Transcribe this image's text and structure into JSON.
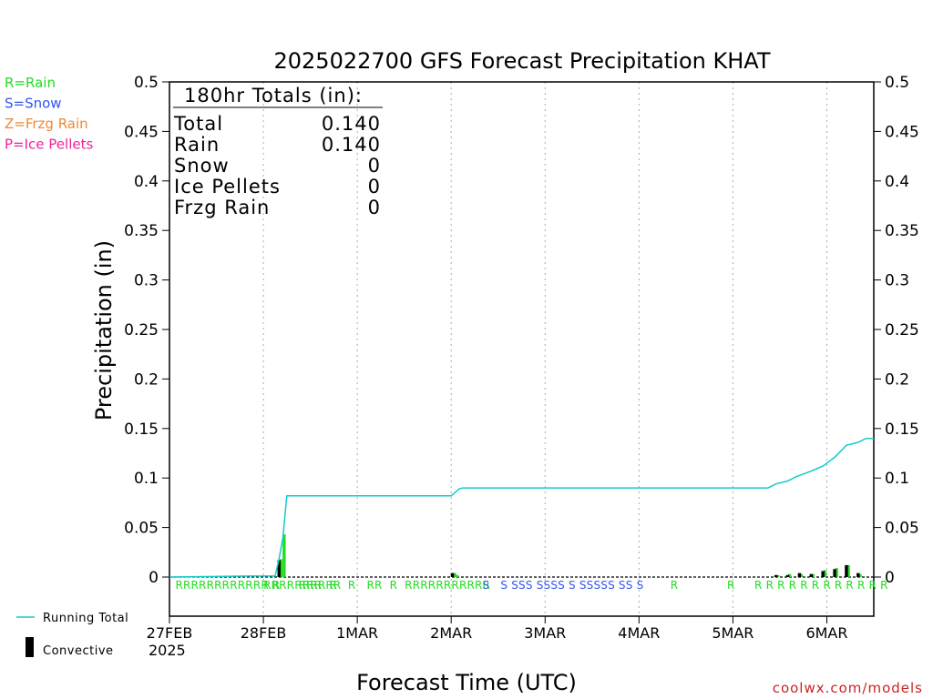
{
  "chart_data": {
    "type": "bar",
    "title": "2025022700 GFS Forecast Precipitation KHAT",
    "xlabel": "Forecast Time (UTC)",
    "ylabel": "Precipitation (in)",
    "ylim": [
      0,
      0.5
    ],
    "xlim_hours": [
      0,
      180
    ],
    "y_ticks": [
      "0",
      "0.05",
      "0.1",
      "0.15",
      "0.2",
      "0.25",
      "0.3",
      "0.35",
      "0.4",
      "0.45",
      "0.5"
    ],
    "x_ticks": [
      {
        "label": "27FEB",
        "hour": 0
      },
      {
        "label": "28FEB",
        "hour": 24
      },
      {
        "label": "1MAR",
        "hour": 48
      },
      {
        "label": "2MAR",
        "hour": 72
      },
      {
        "label": "3MAR",
        "hour": 96
      },
      {
        "label": "4MAR",
        "hour": 120
      },
      {
        "label": "5MAR",
        "hour": 144
      },
      {
        "label": "6MAR",
        "hour": 168
      }
    ],
    "x_year": "2025",
    "grid": "vertical dotted at each day",
    "legend_types": [
      {
        "text": "R=Rain",
        "color": "#22dd22"
      },
      {
        "text": "S=Snow",
        "color": "#3355ee"
      },
      {
        "text": "Z=Frzg Rain",
        "color": "#ee8833"
      },
      {
        "text": "P=Ice Pellets",
        "color": "#ee2299"
      }
    ],
    "legend_lines": [
      {
        "text": "Running Total",
        "color": "#11cccc",
        "kind": "line"
      },
      {
        "text": "Convective",
        "color": "#000000",
        "kind": "bar"
      }
    ],
    "totals_box": {
      "header": "180hr Totals (in):",
      "rows": [
        {
          "label": "Total",
          "value": "0.140"
        },
        {
          "label": "Rain",
          "value": "0.140"
        },
        {
          "label": "Snow",
          "value": "0"
        },
        {
          "label": "Ice Pellets",
          "value": "0"
        },
        {
          "label": "Frzg Rain",
          "value": "0"
        }
      ]
    },
    "series": [
      {
        "name": "Running Total",
        "color": "#11cccc",
        "points": [
          [
            0,
            0
          ],
          [
            21,
            0.001
          ],
          [
            27,
            0.001
          ],
          [
            28,
            0.018
          ],
          [
            29,
            0.04
          ],
          [
            30,
            0.082
          ],
          [
            72,
            0.082
          ],
          [
            74,
            0.089
          ],
          [
            75,
            0.09
          ],
          [
            153,
            0.09
          ],
          [
            155,
            0.094
          ],
          [
            158,
            0.097
          ],
          [
            160,
            0.101
          ],
          [
            162,
            0.104
          ],
          [
            164,
            0.107
          ],
          [
            167,
            0.112
          ],
          [
            170,
            0.121
          ],
          [
            173,
            0.133
          ],
          [
            176,
            0.136
          ],
          [
            178,
            0.14
          ],
          [
            180,
            0.14
          ]
        ]
      },
      {
        "name": "Convective",
        "color": "#000000",
        "bars": [
          [
            28,
            0.017
          ],
          [
            72.3,
            0.004
          ],
          [
            155,
            0.002
          ],
          [
            158,
            0.002
          ],
          [
            161,
            0.004
          ],
          [
            164,
            0.003
          ],
          [
            167,
            0.006
          ],
          [
            170,
            0.008
          ],
          [
            173,
            0.012
          ],
          [
            176,
            0.004
          ]
        ]
      },
      {
        "name": "Rain",
        "color": "#22dd22",
        "bars": [
          [
            28.5,
            0.018
          ],
          [
            29.3,
            0.043
          ],
          [
            72.9,
            0.004
          ],
          [
            73.5,
            0.002
          ],
          [
            155.5,
            0.002
          ],
          [
            158.5,
            0.003
          ],
          [
            161.5,
            0.003
          ],
          [
            164.5,
            0.003
          ],
          [
            167.5,
            0.007
          ],
          [
            170.5,
            0.009
          ],
          [
            173.5,
            0.012
          ],
          [
            176.5,
            0.003
          ]
        ]
      }
    ],
    "ptype_marks": [
      {
        "text": "RRRRRRRRRRRR R",
        "color": "#22dd22",
        "x_hour": 1.5
      },
      {
        "text": "RRRRRRRRRR",
        "color": "#22dd22",
        "x_hour": 24
      },
      {
        "text": "RRR  R   R   RR  R  RRRRRRRRRRR",
        "color": "#22dd22",
        "x_hour": 33
      },
      {
        "text": "S   S SSS SSSS S SSSSS SS S",
        "color": "#3355ee",
        "x_hour": 80
      },
      {
        "text": "R",
        "color": "#22dd22",
        "x_hour": 128
      },
      {
        "text": "R",
        "color": "#22dd22",
        "x_hour": 142.5
      },
      {
        "text": "R R R R R R R R R R R R",
        "color": "#22dd22",
        "x_hour": 149.5
      }
    ],
    "credit": "coolwx.com/models"
  }
}
